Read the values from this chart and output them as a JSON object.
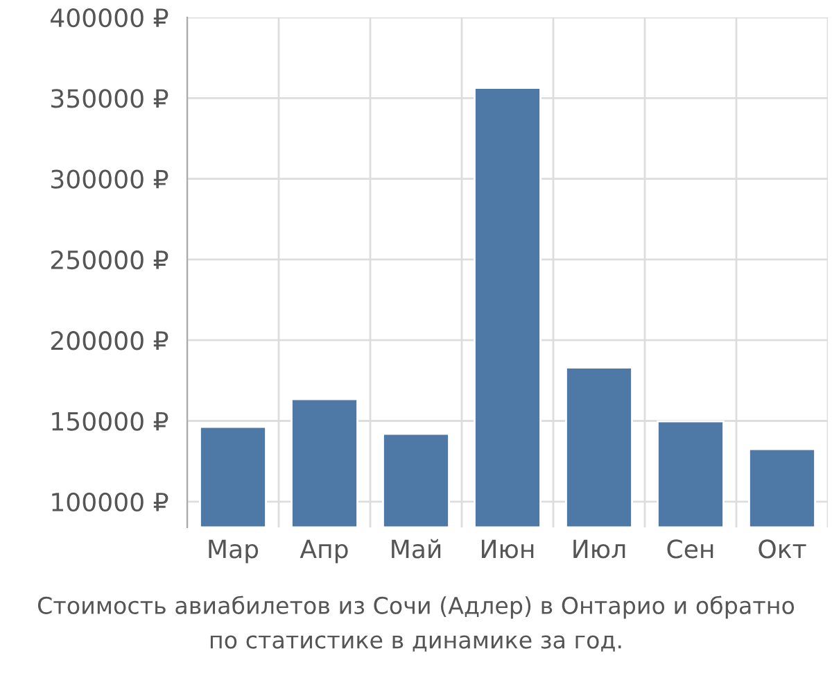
{
  "chart_data": {
    "type": "bar",
    "categories": [
      "Мар",
      "Апр",
      "Май",
      "Июн",
      "Июл",
      "Сен",
      "Окт"
    ],
    "values": [
      146300,
      163500,
      142000,
      356300,
      183000,
      149700,
      132500
    ],
    "color": "#4e79a7",
    "ylim": [
      84000,
      400000
    ],
    "yticks": [
      {
        "value": 100000,
        "label": "100000 ₽"
      },
      {
        "value": 150000,
        "label": "150000 ₽"
      },
      {
        "value": 200000,
        "label": "200000 ₽"
      },
      {
        "value": 250000,
        "label": "250000 ₽"
      },
      {
        "value": 300000,
        "label": "300000 ₽"
      },
      {
        "value": 350000,
        "label": "350000 ₽"
      },
      {
        "value": 400000,
        "label": "400000 ₽"
      }
    ],
    "grid": true,
    "annotations": [
      "Стоимость авиабилетов из Сочи (Адлер) в Онтарио и обратно",
      "по статистике в динамике за год."
    ]
  }
}
